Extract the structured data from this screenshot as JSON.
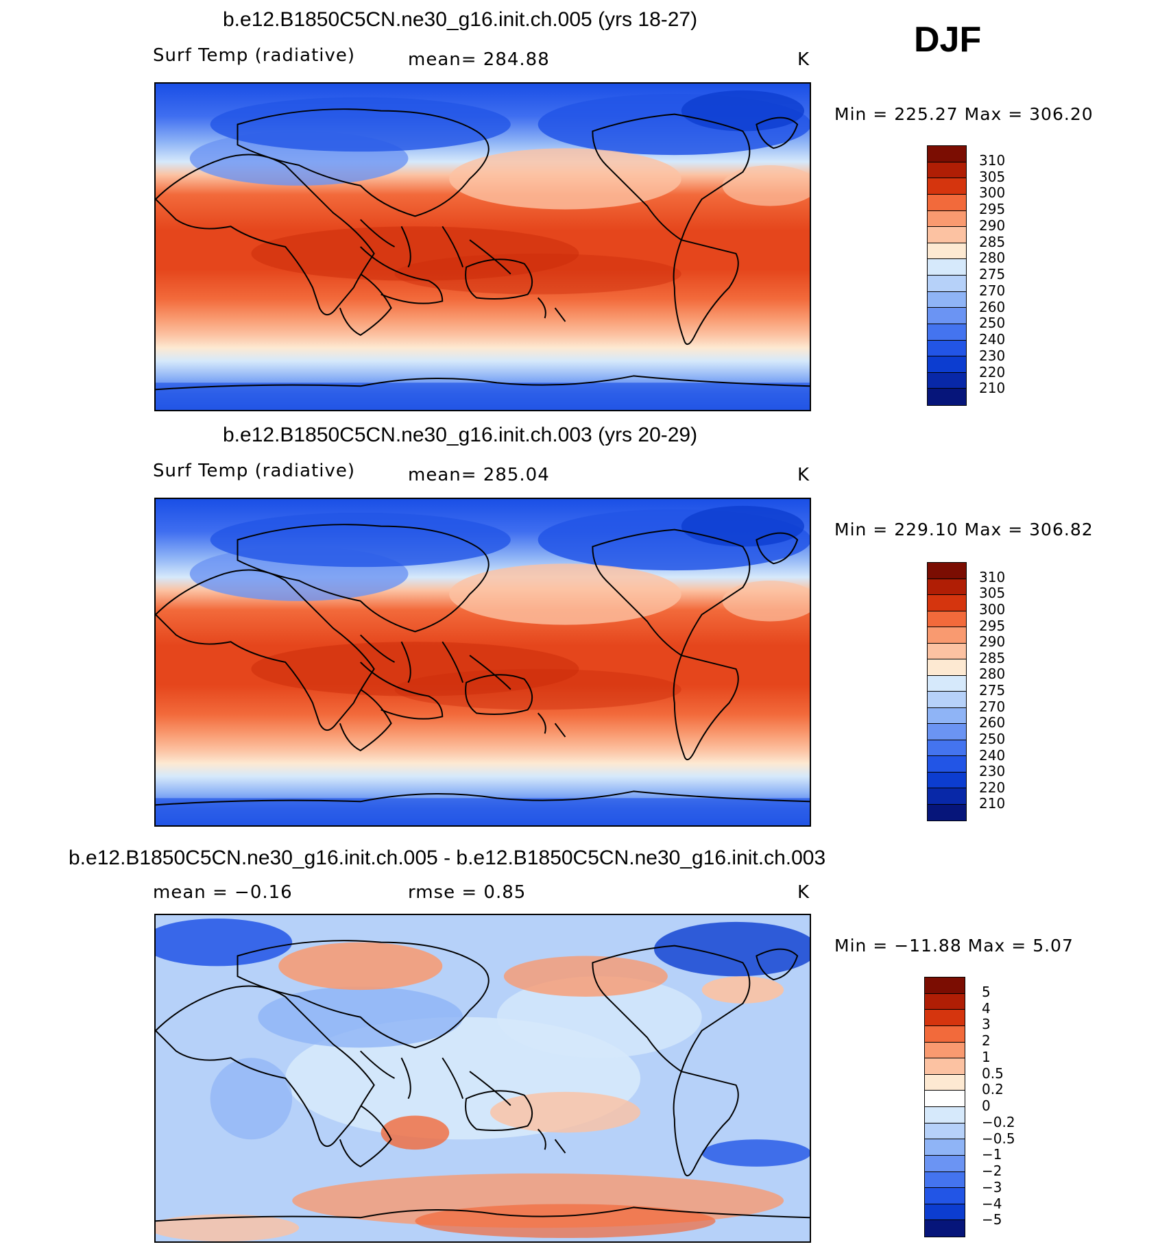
{
  "season": "DJF",
  "palette_warm": [
    "#fde9d2",
    "#fcc2a2",
    "#f99a70",
    "#f26a3b",
    "#e5461c",
    "#cc2d0b",
    "#a81b04",
    "#7b0d02"
  ],
  "palette_cool": [
    "#d6e9fb",
    "#b6d1f9",
    "#8fb4f6",
    "#6b94f3",
    "#4474ef",
    "#2255e6",
    "#0c3dd0",
    "#0828a8",
    "#06157a"
  ],
  "panels": [
    {
      "title": "b.e12.B1850C5CN.ne30_g16.init.ch.005 (yrs 18-27)",
      "left_label": "Surf Temp (radiative)",
      "center_label": "mean=  284.88",
      "units": "K",
      "minmax": "Min  =  225.27  Max  =  306.20",
      "colorbar": {
        "colors": [
          "#7b0d02",
          "#b01e05",
          "#d5350e",
          "#f26a3b",
          "#f99a70",
          "#fcc2a2",
          "#fde9d2",
          "#d6e9fb",
          "#b6d1f9",
          "#8fb4f6",
          "#6b94f3",
          "#4474ef",
          "#2255e6",
          "#0c3dd0",
          "#0828a8",
          "#06157a"
        ],
        "labels": [
          "310",
          "305",
          "300",
          "295",
          "290",
          "285",
          "280",
          "275",
          "270",
          "260",
          "250",
          "240",
          "230",
          "220",
          "210"
        ]
      }
    },
    {
      "title": "b.e12.B1850C5CN.ne30_g16.init.ch.003 (yrs 20-29)",
      "left_label": "Surf Temp (radiative)",
      "center_label": "mean=  285.04",
      "units": "K",
      "minmax": "Min  =  229.10  Max  =  306.82",
      "colorbar": {
        "colors": [
          "#7b0d02",
          "#b01e05",
          "#d5350e",
          "#f26a3b",
          "#f99a70",
          "#fcc2a2",
          "#fde9d2",
          "#d6e9fb",
          "#b6d1f9",
          "#8fb4f6",
          "#6b94f3",
          "#4474ef",
          "#2255e6",
          "#0c3dd0",
          "#0828a8",
          "#06157a"
        ],
        "labels": [
          "310",
          "305",
          "300",
          "295",
          "290",
          "285",
          "280",
          "275",
          "270",
          "260",
          "250",
          "240",
          "230",
          "220",
          "210"
        ]
      }
    },
    {
      "title": "b.e12.B1850C5CN.ne30_g16.init.ch.005 - b.e12.B1850C5CN.ne30_g16.init.ch.003",
      "left_label": "mean =    −0.16",
      "center_label": "rmse =     0.85",
      "units": "K",
      "minmax": "Min  =  −11.88  Max  =     5.07",
      "colorbar": {
        "colors": [
          "#7b0d02",
          "#b01e05",
          "#d5350e",
          "#f26a3b",
          "#f99a70",
          "#fcc2a2",
          "#fde9d2",
          "#ffffff",
          "#d6e9fb",
          "#b6d1f9",
          "#8fb4f6",
          "#6b94f3",
          "#4474ef",
          "#2255e6",
          "#0c3dd0",
          "#06157a"
        ],
        "labels": [
          "5",
          "4",
          "3",
          "2",
          "1",
          "0.5",
          "0.2",
          "0",
          "−0.2",
          "−0.5",
          "−1",
          "−2",
          "−3",
          "−4",
          "−5"
        ]
      }
    }
  ]
}
